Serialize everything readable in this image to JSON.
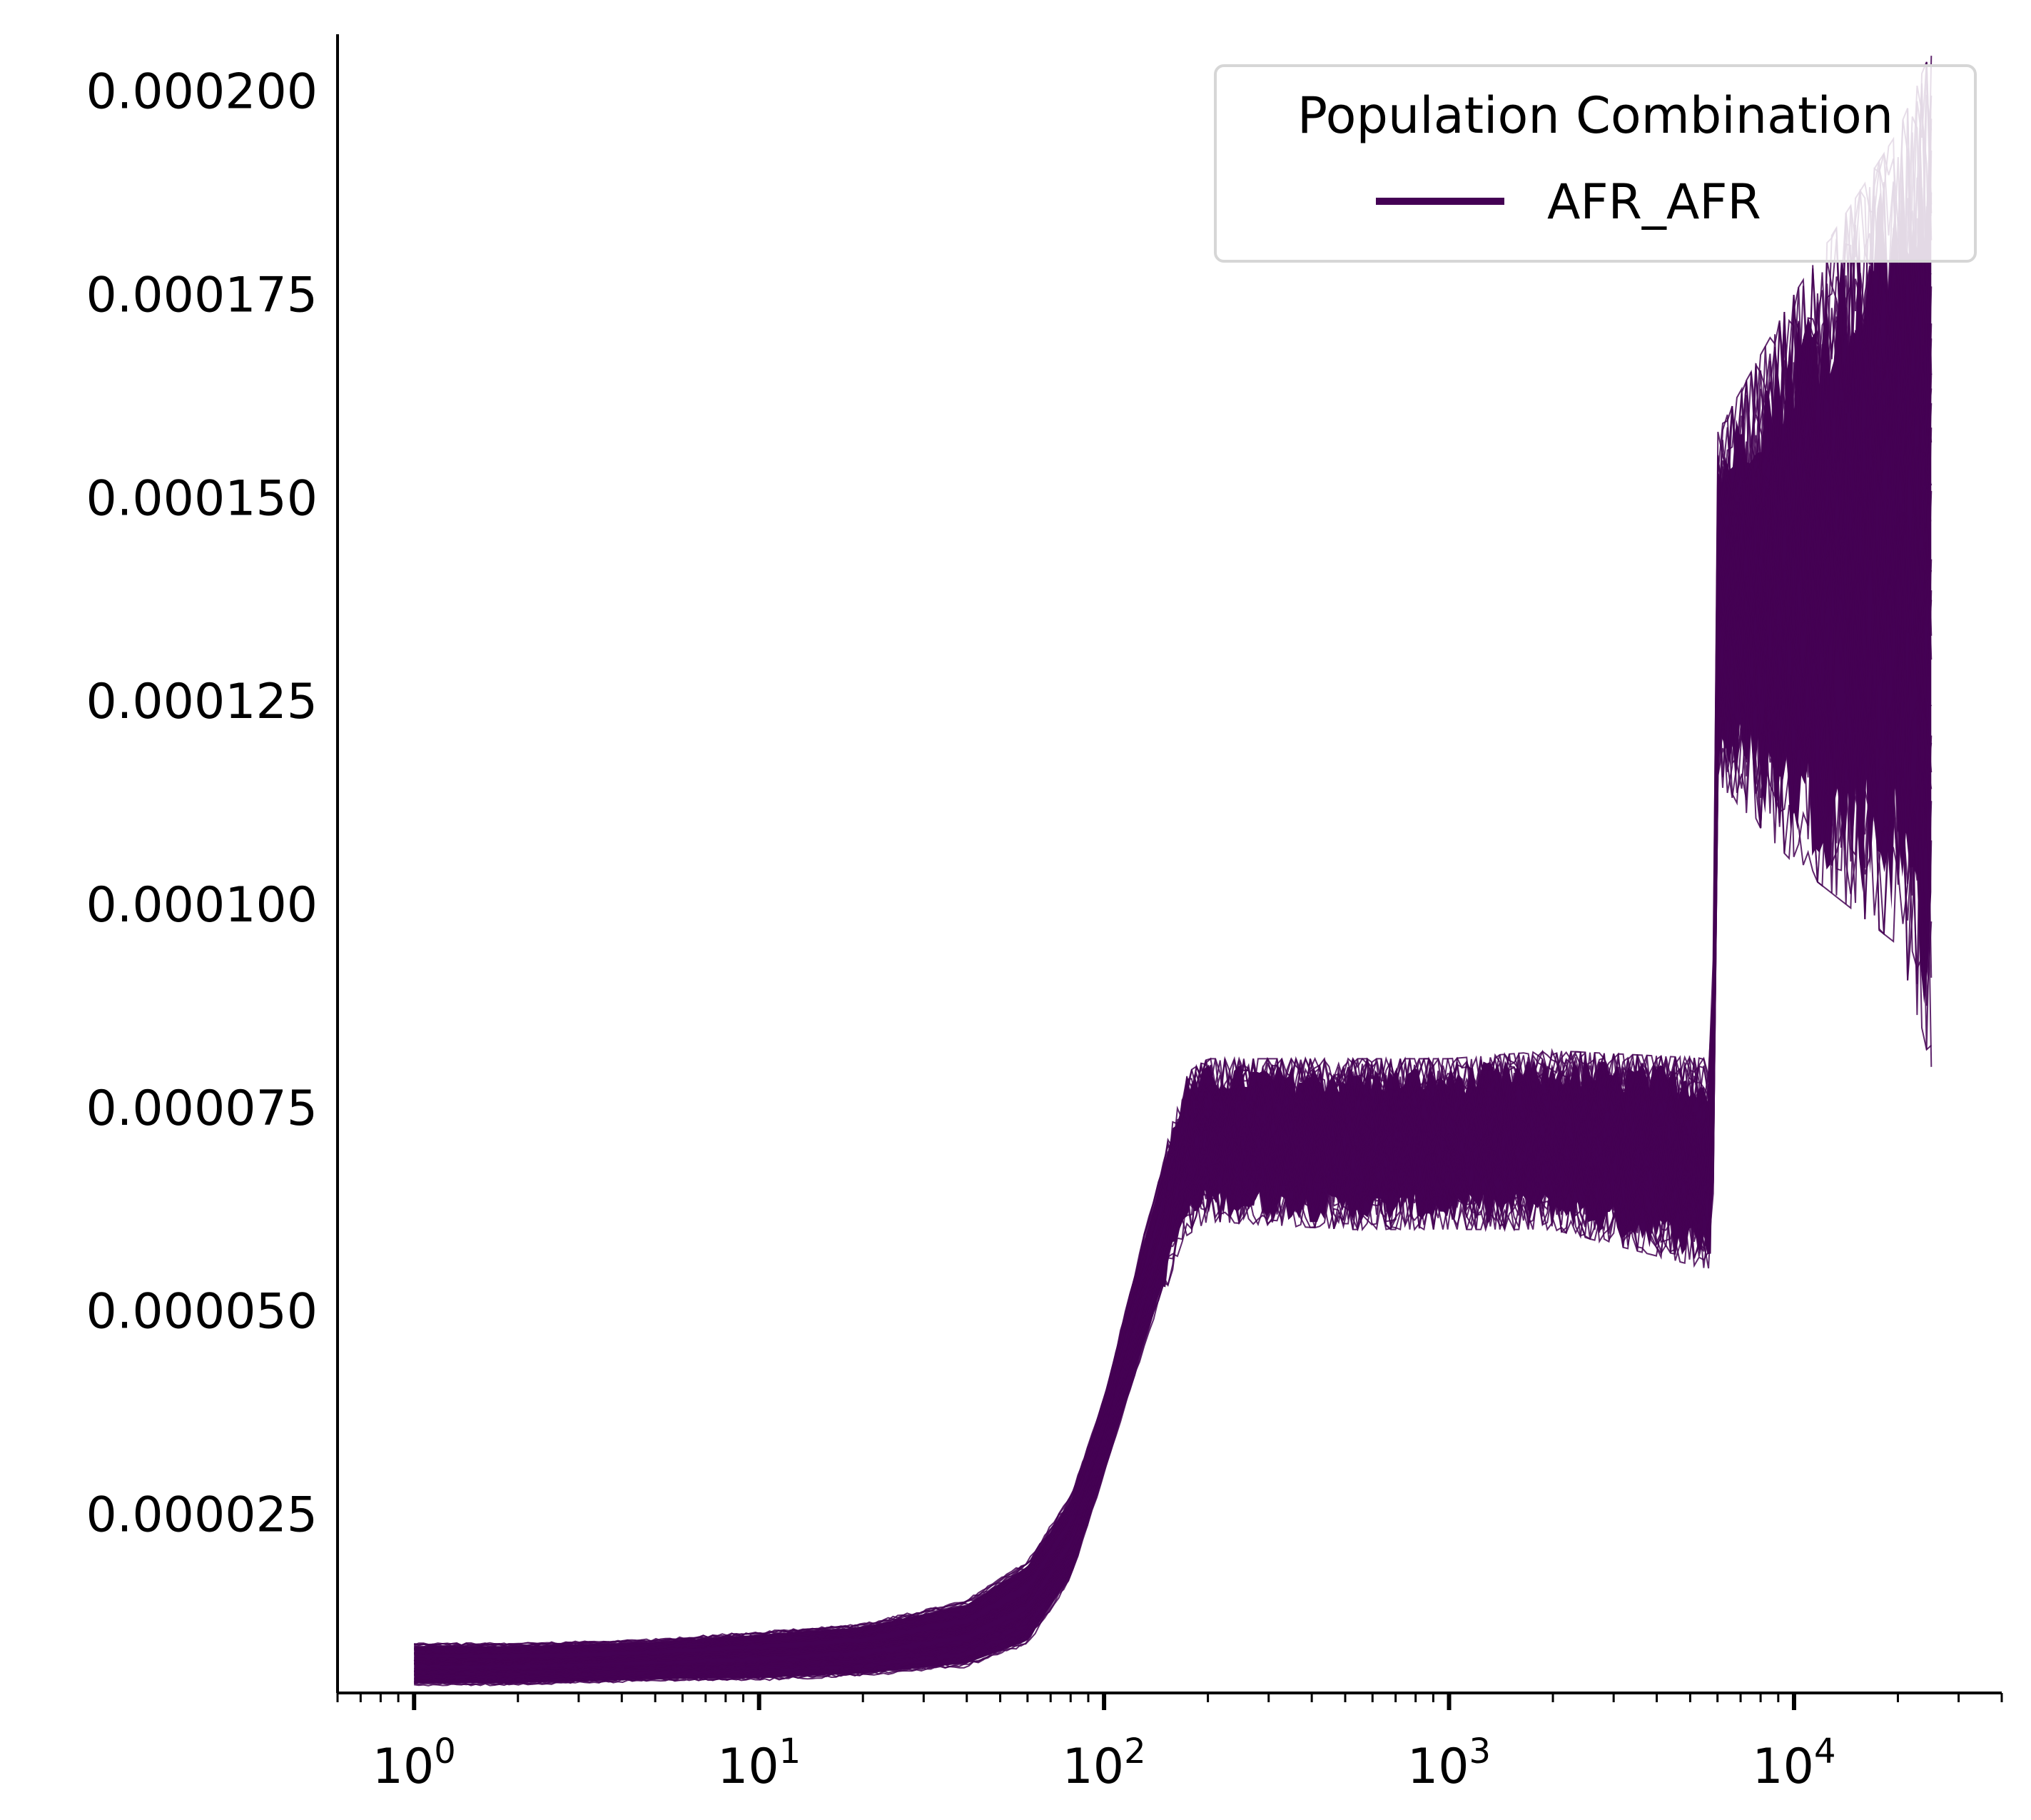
{
  "chart_data": {
    "type": "line",
    "title": "",
    "xlabel": "",
    "ylabel": "",
    "xscale": "log",
    "xlim": [
      0.6,
      40000
    ],
    "ylim": [
      3e-06,
      0.000207
    ],
    "x_ticks": [
      {
        "value": 1,
        "base": "10",
        "exp": "0"
      },
      {
        "value": 10,
        "base": "10",
        "exp": "1"
      },
      {
        "value": 100,
        "base": "10",
        "exp": "2"
      },
      {
        "value": 1000,
        "base": "10",
        "exp": "3"
      },
      {
        "value": 10000,
        "base": "10",
        "exp": "4"
      }
    ],
    "y_ticks": [
      {
        "value": 2.5e-05,
        "label": "0.000025"
      },
      {
        "value": 5e-05,
        "label": "0.000050"
      },
      {
        "value": 7.5e-05,
        "label": "0.000075"
      },
      {
        "value": 0.0001,
        "label": "0.000100"
      },
      {
        "value": 0.000125,
        "label": "0.000125"
      },
      {
        "value": 0.00015,
        "label": "0.000150"
      },
      {
        "value": 0.000175,
        "label": "0.000175"
      },
      {
        "value": 0.0002,
        "label": "0.000200"
      }
    ],
    "grid": false,
    "legend": {
      "title": "Population Combination",
      "placement": "top-right",
      "entries": [
        "AFR_AFR"
      ]
    },
    "colors": {
      "AFR_AFR": "#440154"
    },
    "series": [
      {
        "name": "AFR_AFR",
        "description_of_band": "ensemble of many overlapping bootstrap lines",
        "x": [
          1,
          2,
          5,
          10,
          20,
          40,
          60,
          80,
          100,
          130,
          170,
          200,
          500,
          1000,
          2000,
          5800,
          6000,
          10000,
          20000,
          25000
        ],
        "lower": [
          3.5e-06,
          3.5e-06,
          4e-06,
          4e-06,
          4.5e-06,
          5.5e-06,
          8e-06,
          1.6e-05,
          2.9e-05,
          4.4e-05,
          5.9e-05,
          6.1e-05,
          6e-05,
          6e-05,
          6e-05,
          5.5e-05,
          0.000115,
          0.000105,
          9.5e-05,
          8e-05
        ],
        "upper": [
          9.5e-06,
          9.5e-06,
          1e-05,
          1.1e-05,
          1.2e-05,
          1.5e-05,
          2e-05,
          2.8e-05,
          4e-05,
          6e-05,
          7.9e-05,
          8.1e-05,
          8.1e-05,
          8.1e-05,
          8.2e-05,
          8.1e-05,
          0.000158,
          0.000175,
          0.000195,
          0.000205
        ]
      }
    ]
  }
}
